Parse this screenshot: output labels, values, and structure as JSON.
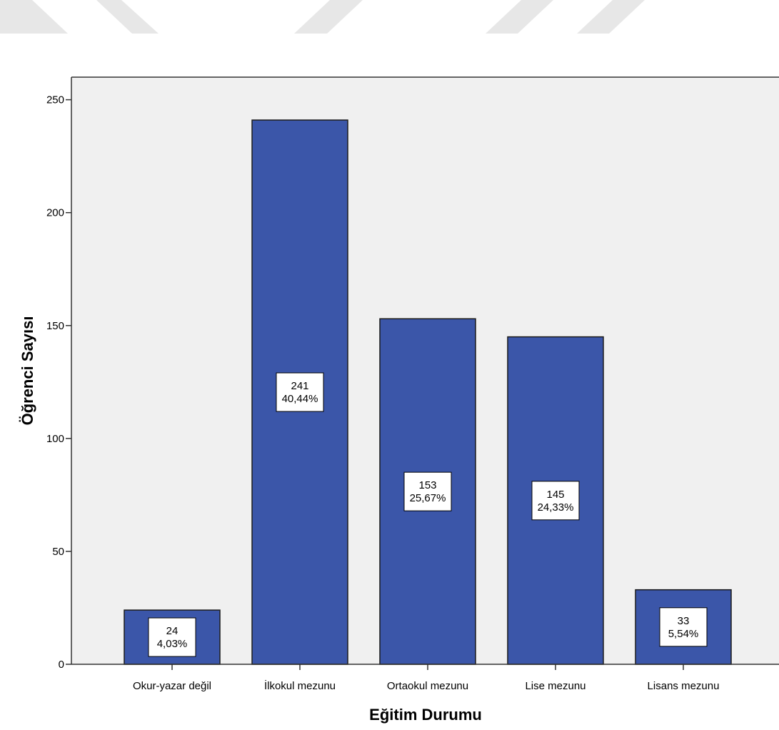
{
  "chart_data": {
    "type": "bar",
    "title": "",
    "xlabel": "Eğitim Durumu",
    "ylabel": "Öğrenci Sayısı",
    "categories": [
      "Okur-yazar değil",
      "İlkokul mezunu",
      "Ortaokul mezunu",
      "Lise mezunu",
      "Lisans mezunu"
    ],
    "values": [
      24,
      241,
      153,
      145,
      33
    ],
    "percent_labels": [
      "4,03%",
      "40,44%",
      "25,67%",
      "24,33%",
      "5,54%"
    ],
    "ylim": [
      0,
      260
    ],
    "yticks": [
      0,
      50,
      100,
      150,
      200,
      250
    ],
    "grid": false,
    "legend": "none",
    "colors": {
      "bar": "#3b56a9",
      "bar_stroke": "#1a1a1a",
      "plot_background": "#f0f0f0",
      "axis": "#333333",
      "decor_stripe": "#e7e7e7"
    }
  }
}
